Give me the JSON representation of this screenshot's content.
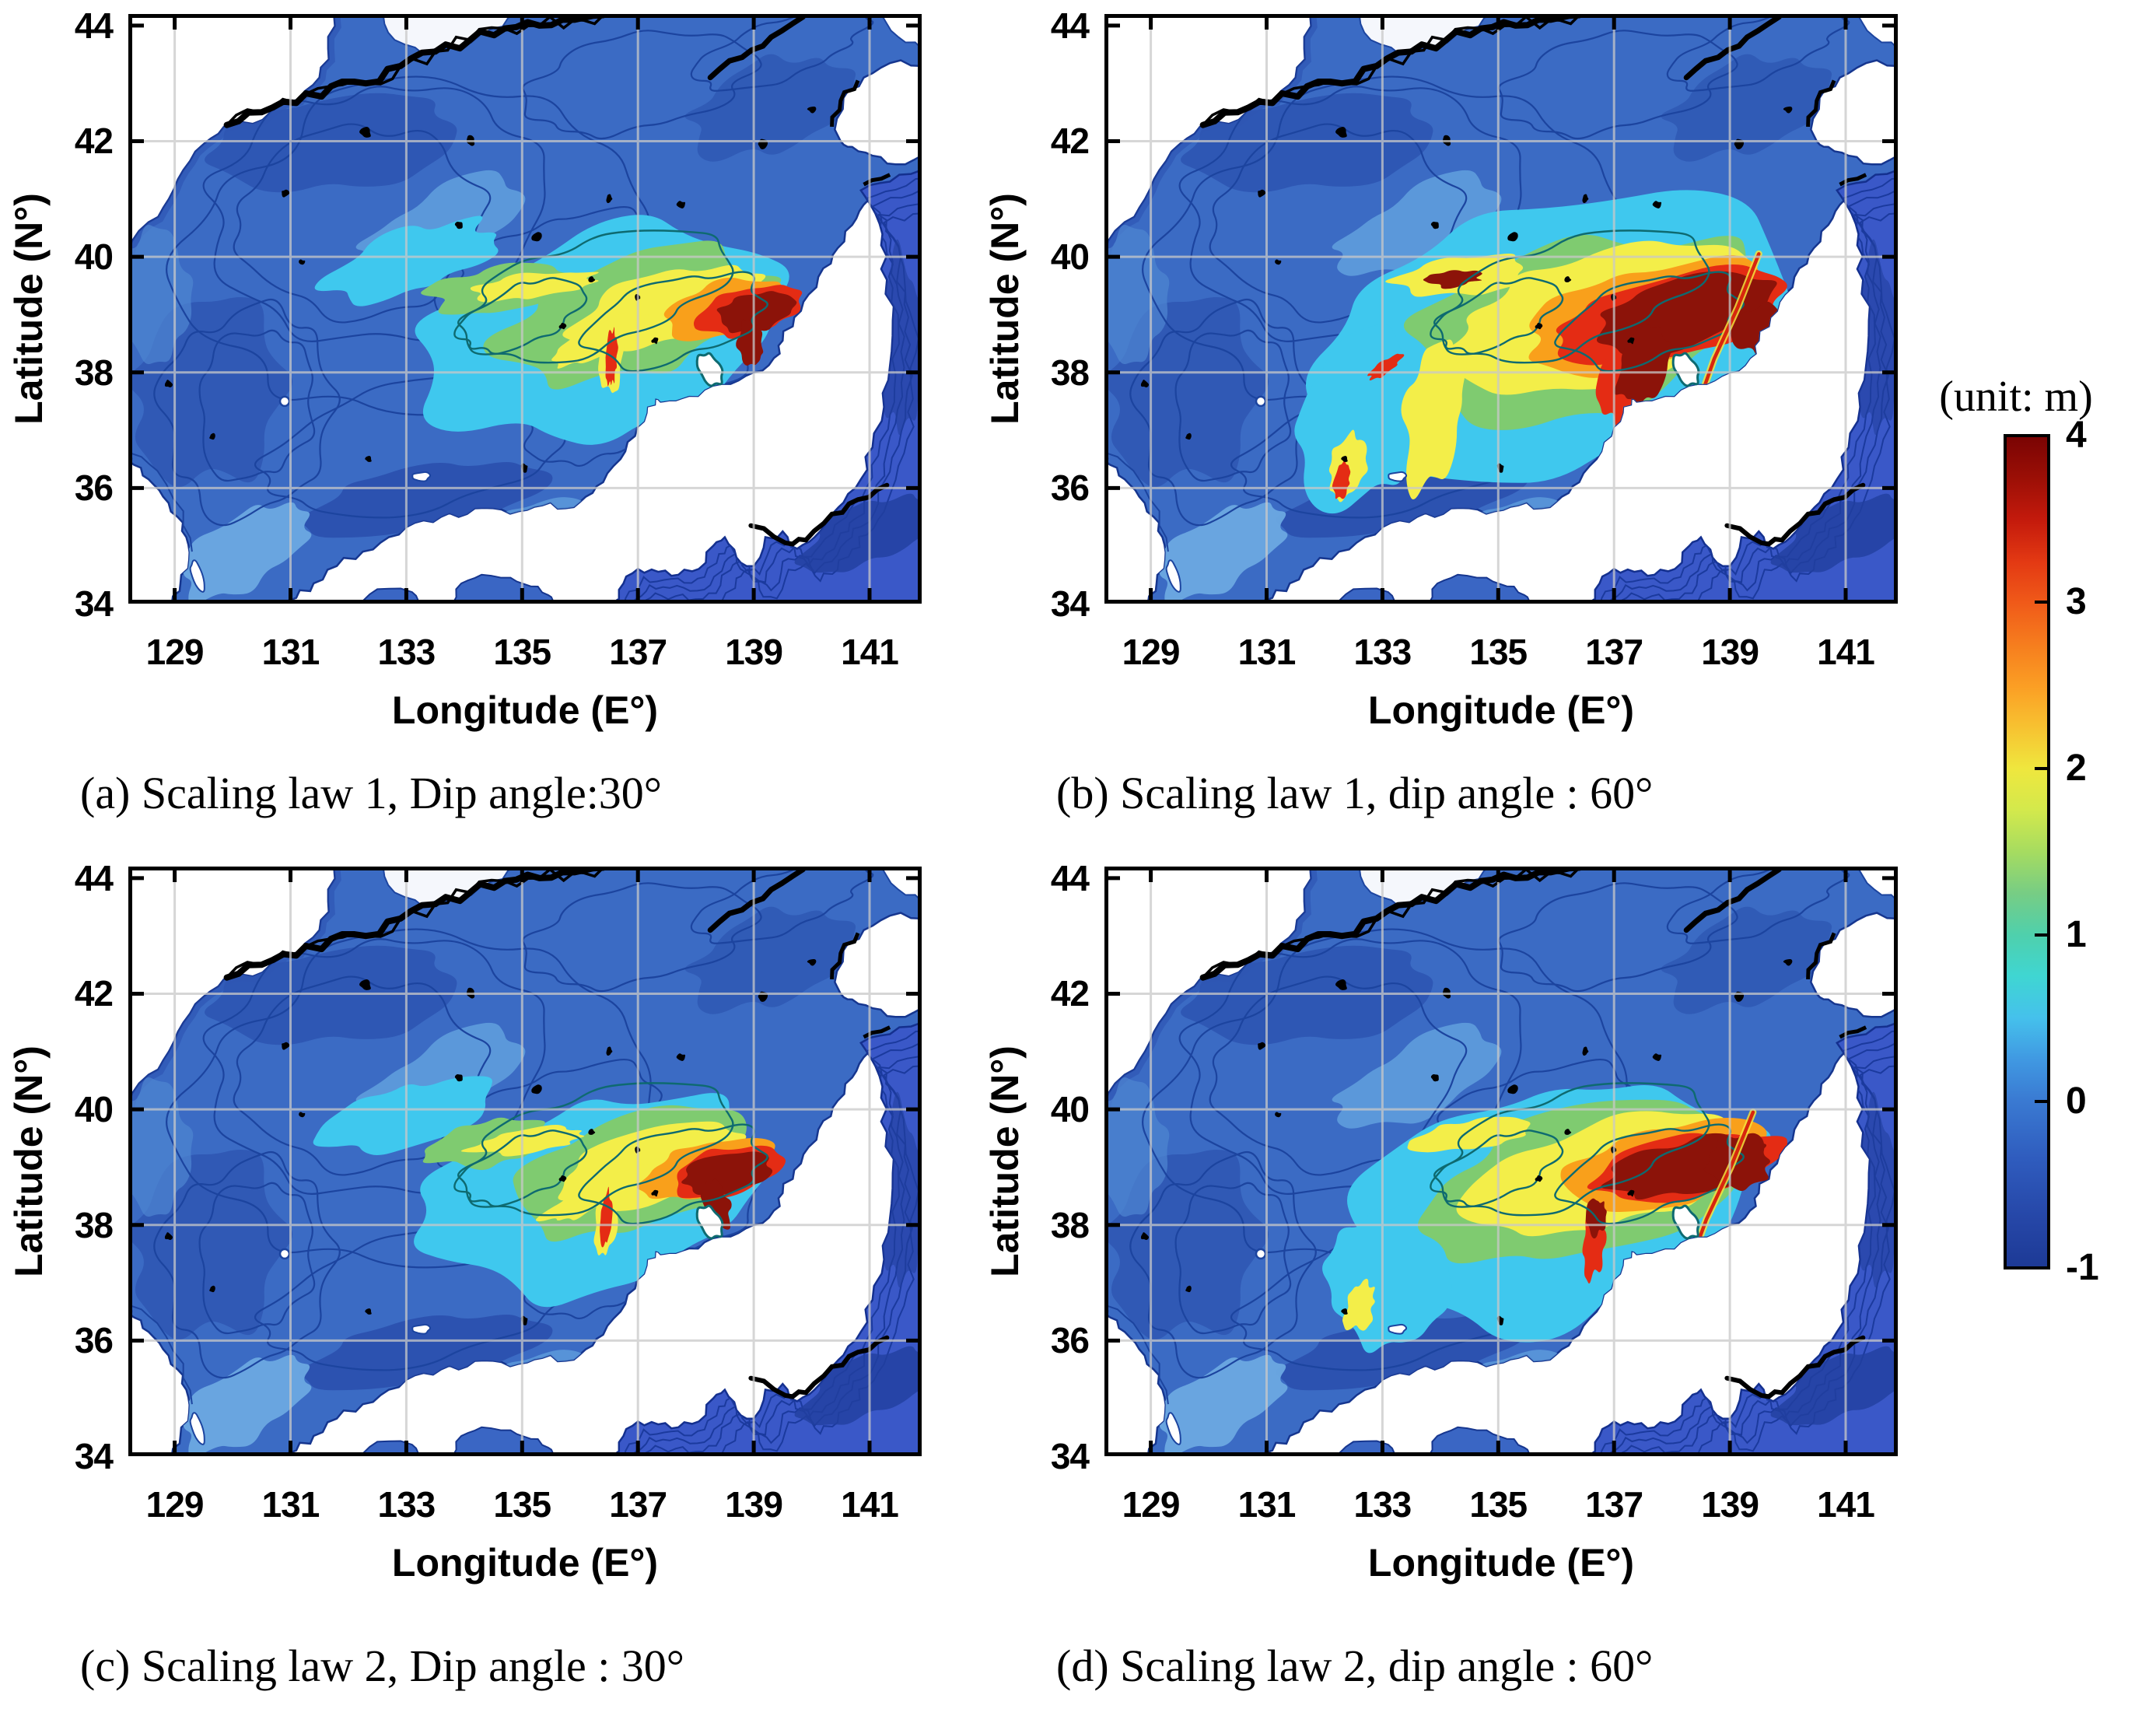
{
  "chart_data": {
    "type": "heatmap",
    "subtype": "geographic contour map grid (2x2 subplots)",
    "description": "Computed maximum tsunami wave height distributions over the Sea of Japan for four source cases combining two fault scaling laws and two dip angles.",
    "colorbar": {
      "title": "(unit: m)",
      "min": -1,
      "max": 4,
      "tick_labels": [
        "4",
        "3",
        "2",
        "1",
        "0",
        "-1"
      ],
      "tick_values": [
        4,
        3,
        2,
        1,
        0,
        -1
      ],
      "colormap": "jet",
      "stops": [
        {
          "value": 4.0,
          "color": "#7a0403"
        },
        {
          "value": 3.75,
          "color": "#9c0f06"
        },
        {
          "value": 3.5,
          "color": "#c41a0c"
        },
        {
          "value": 3.25,
          "color": "#e33913"
        },
        {
          "value": 3.0,
          "color": "#f05a19"
        },
        {
          "value": 2.75,
          "color": "#f67d1e"
        },
        {
          "value": 2.5,
          "color": "#fb9e24"
        },
        {
          "value": 2.25,
          "color": "#f7c231"
        },
        {
          "value": 2.0,
          "color": "#efe73e"
        },
        {
          "value": 1.75,
          "color": "#d3e94c"
        },
        {
          "value": 1.5,
          "color": "#a6dc60"
        },
        {
          "value": 1.25,
          "color": "#77cd84"
        },
        {
          "value": 1.0,
          "color": "#4fd0ac"
        },
        {
          "value": 0.75,
          "color": "#3fd6d2"
        },
        {
          "value": 0.5,
          "color": "#45c1ec"
        },
        {
          "value": 0.25,
          "color": "#4099e2"
        },
        {
          "value": 0.0,
          "color": "#3a7ad2"
        },
        {
          "value": -0.35,
          "color": "#2f5cbe"
        },
        {
          "value": -0.7,
          "color": "#2647a8"
        },
        {
          "value": -1.0,
          "color": "#1d3a96"
        }
      ]
    },
    "axes": {
      "xlabel": "Longitude (E°)",
      "ylabel": "Latitude (N°)",
      "xtick_labels": [
        "129",
        "131",
        "133",
        "135",
        "137",
        "139",
        "141"
      ],
      "xtick_values": [
        129,
        131,
        133,
        135,
        137,
        139,
        141
      ],
      "ytick_labels": [
        "44",
        "42",
        "40",
        "38",
        "36",
        "34"
      ],
      "ytick_values": [
        44,
        42,
        40,
        38,
        36,
        34
      ],
      "xlim": [
        128.2,
        141.9
      ],
      "ylim": [
        34,
        44.2
      ],
      "grid": true
    },
    "panels": [
      {
        "id": "a",
        "caption": "(a) Scaling law 1, Dip angle:30°",
        "scaling_law": 1,
        "dip_angle_deg": 30,
        "relative_hotspot_size": "moderate",
        "peak_region": {
          "lon": [
            138.3,
            139.8
          ],
          "lat": [
            38.6,
            39.5
          ]
        },
        "peak_value_m": 4
      },
      {
        "id": "b",
        "caption": "(b) Scaling law 1, dip angle : 60°",
        "scaling_law": 1,
        "dip_angle_deg": 60,
        "relative_hotspot_size": "largest",
        "peak_region": {
          "lon": [
            135.1,
            139.9
          ],
          "lat": [
            38.0,
            39.9
          ]
        },
        "peak_value_m": 4
      },
      {
        "id": "c",
        "caption": "(c) Scaling law 2, Dip angle : 30°",
        "scaling_law": 2,
        "dip_angle_deg": 30,
        "relative_hotspot_size": "moderate",
        "peak_region": {
          "lon": [
            137.9,
            139.3
          ],
          "lat": [
            38.5,
            39.2
          ]
        },
        "peak_value_m": 4
      },
      {
        "id": "d",
        "caption": "(d) Scaling law 2, dip angle : 60°",
        "scaling_law": 2,
        "dip_angle_deg": 60,
        "relative_hotspot_size": "large",
        "peak_region": {
          "lon": [
            136.8,
            139.6
          ],
          "lat": [
            38.5,
            39.4
          ]
        },
        "peak_value_m": 4
      }
    ]
  },
  "colors": {
    "background": "#ffffff",
    "sea_base": "#3b6bc4",
    "pacific": "#3a58c8",
    "land": "#ffffff",
    "contour_navy": "#1c449f",
    "grid": "#c9c9c9",
    "axis_text": "#000000"
  }
}
